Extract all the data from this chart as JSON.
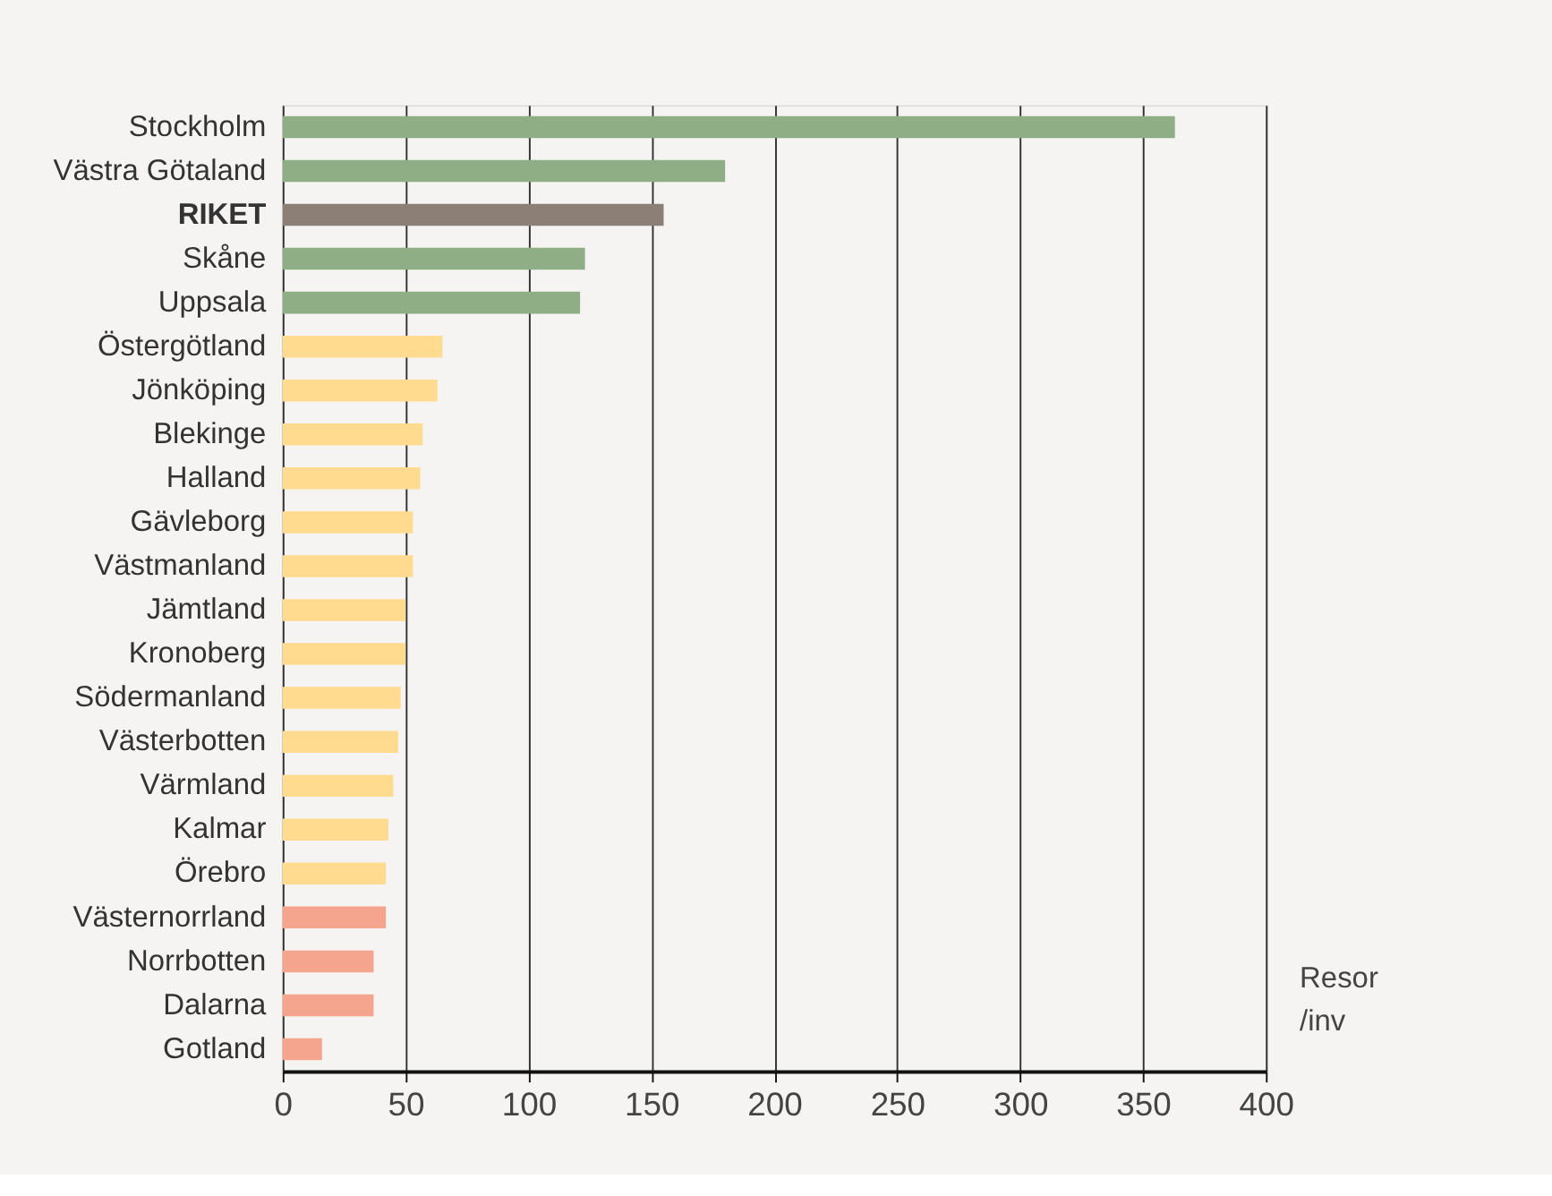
{
  "chart_data": {
    "type": "bar",
    "orientation": "horizontal",
    "xlabel": "Resor /inv",
    "categories": [
      "Stockholm",
      "Västra Götaland",
      "RIKET",
      "Skåne",
      "Uppsala",
      "Östergötland",
      "Jönköping",
      "Blekinge",
      "Halland",
      "Gävleborg",
      "Västmanland",
      "Jämtland",
      "Kronoberg",
      "Södermanland",
      "Västerbotten",
      "Värmland",
      "Kalmar",
      "Örebro",
      "Västernorrland",
      "Norrbotten",
      "Dalarna",
      "Gotland"
    ],
    "values": [
      363,
      180,
      155,
      123,
      121,
      65,
      63,
      57,
      56,
      53,
      53,
      50,
      50,
      48,
      47,
      45,
      43,
      42,
      42,
      37,
      37,
      16
    ],
    "colors": [
      "#8fae86",
      "#8fae86",
      "#8c7f76",
      "#8fae86",
      "#8fae86",
      "#ffdb8f",
      "#ffdb8f",
      "#ffdb8f",
      "#ffdb8f",
      "#ffdb8f",
      "#ffdb8f",
      "#ffdb8f",
      "#ffdb8f",
      "#ffdb8f",
      "#ffdb8f",
      "#ffdb8f",
      "#ffdb8f",
      "#ffdb8f",
      "#f5a58d",
      "#f5a58d",
      "#f5a58d",
      "#f5a58d"
    ],
    "xlim": [
      0,
      400
    ],
    "xticks": [
      0,
      50,
      100,
      150,
      200,
      250,
      300,
      350,
      400
    ],
    "grid": "x"
  }
}
